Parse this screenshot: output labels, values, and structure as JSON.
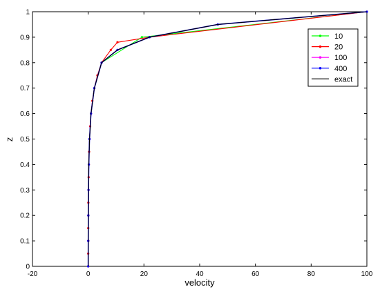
{
  "chart_data": {
    "type": "line",
    "title": "",
    "xlabel": "velocity",
    "ylabel": "z",
    "xlim": [
      -20,
      100
    ],
    "ylim": [
      0,
      1
    ],
    "x_ticks": [
      "-20",
      "0",
      "20",
      "40",
      "60",
      "80",
      "100"
    ],
    "y_ticks": [
      "0",
      "0.1",
      "0.2",
      "0.3",
      "0.4",
      "0.5",
      "0.6",
      "0.7",
      "0.8",
      "0.9",
      "1"
    ],
    "grid": false,
    "legend_position": "top-right",
    "series": [
      {
        "name": "10",
        "color": "#00ff00",
        "marker": "dot",
        "x": [
          0,
          0.02,
          0.05,
          0.1,
          0.22,
          0.47,
          1.0,
          2.2,
          4.8,
          19.3,
          100
        ],
        "y": [
          0,
          0.1,
          0.2,
          0.3,
          0.4,
          0.5,
          0.6,
          0.7,
          0.8,
          0.9,
          1.0
        ]
      },
      {
        "name": "20",
        "color": "#ff0000",
        "marker": "dot",
        "x": [
          0,
          0.0,
          0.02,
          0.02,
          0.05,
          0.05,
          0.1,
          0.15,
          0.22,
          0.32,
          0.47,
          0.7,
          1.0,
          1.5,
          2.2,
          3.3,
          4.8,
          8.1,
          10.5,
          22.0,
          100
        ],
        "y": [
          0,
          0.05,
          0.1,
          0.15,
          0.2,
          0.25,
          0.3,
          0.35,
          0.4,
          0.45,
          0.5,
          0.55,
          0.6,
          0.65,
          0.7,
          0.75,
          0.8,
          0.85,
          0.88,
          0.9,
          1.0
        ]
      },
      {
        "name": "100",
        "color": "#ff00ff",
        "marker": "dot",
        "x": [
          0,
          0.02,
          0.05,
          0.1,
          0.22,
          0.47,
          1.0,
          2.2,
          4.8,
          10.5,
          22.0,
          46.5,
          100
        ],
        "y": [
          0,
          0.1,
          0.2,
          0.3,
          0.4,
          0.5,
          0.6,
          0.7,
          0.8,
          0.85,
          0.9,
          0.95,
          1.0
        ]
      },
      {
        "name": "400",
        "color": "#0000ff",
        "marker": "dot",
        "x": [
          0,
          0.02,
          0.05,
          0.1,
          0.22,
          0.47,
          1.0,
          2.2,
          4.8,
          10.5,
          22.0,
          46.5,
          100
        ],
        "y": [
          0,
          0.1,
          0.2,
          0.3,
          0.4,
          0.5,
          0.6,
          0.7,
          0.8,
          0.85,
          0.9,
          0.95,
          1.0
        ]
      },
      {
        "name": "exact",
        "color": "#000000",
        "marker": "none",
        "x": [
          0,
          0.02,
          0.05,
          0.1,
          0.22,
          0.47,
          1.0,
          2.2,
          4.8,
          10.5,
          22.0,
          46.5,
          100
        ],
        "y": [
          0,
          0.1,
          0.2,
          0.3,
          0.4,
          0.5,
          0.6,
          0.7,
          0.8,
          0.85,
          0.9,
          0.95,
          1.0
        ]
      }
    ]
  }
}
